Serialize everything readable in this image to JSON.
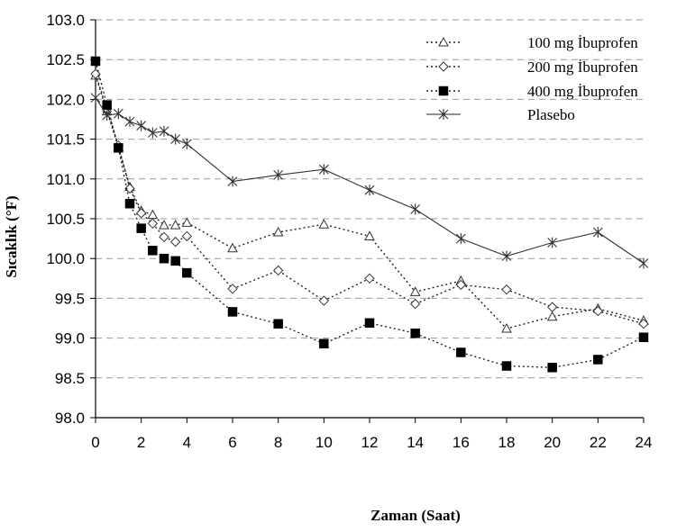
{
  "chart_data": {
    "type": "line",
    "title": "",
    "xlabel": "Zaman (Saat)",
    "ylabel": "Sıcaklık (°F)",
    "xlim": [
      0,
      24
    ],
    "ylim": [
      98.0,
      103.0
    ],
    "x_ticks": [
      0,
      2,
      4,
      6,
      8,
      10,
      12,
      14,
      16,
      18,
      20,
      22,
      24
    ],
    "y_ticks": [
      "98.0",
      "98.5",
      "99.0",
      "99.5",
      "100.0",
      "100.5",
      "101.0",
      "101.5",
      "102.0",
      "102.5",
      "103.0"
    ],
    "grid": "horizontal dashed",
    "legend_position": "top-right",
    "series": [
      {
        "name": "100 mg İbuprofen",
        "marker": "triangle-open",
        "line": "dotted",
        "x": [
          0,
          0.5,
          1,
          1.5,
          2,
          2.5,
          3,
          3.5,
          4,
          6,
          8,
          10,
          12,
          14,
          16,
          18,
          20,
          22,
          24
        ],
        "y": [
          102.3,
          101.85,
          101.4,
          100.9,
          100.6,
          100.55,
          100.42,
          100.42,
          100.45,
          100.13,
          100.33,
          100.43,
          100.28,
          99.58,
          99.72,
          99.12,
          99.27,
          99.37,
          99.22
        ]
      },
      {
        "name": "200 mg İbuprofen",
        "marker": "diamond-open",
        "line": "dotted",
        "x": [
          0,
          0.5,
          1,
          1.5,
          2,
          2.5,
          3,
          3.5,
          4,
          6,
          8,
          10,
          12,
          14,
          16,
          18,
          20,
          22,
          24
        ],
        "y": [
          102.32,
          101.88,
          101.42,
          100.88,
          100.57,
          100.44,
          100.27,
          100.21,
          100.28,
          99.62,
          99.85,
          99.47,
          99.75,
          99.43,
          99.67,
          99.61,
          99.39,
          99.34,
          99.18
        ]
      },
      {
        "name": "400 mg İbuprofen",
        "marker": "square-filled",
        "line": "dotted",
        "x": [
          0,
          0.5,
          1,
          1.5,
          2,
          2.5,
          3,
          3.5,
          4,
          6,
          8,
          10,
          12,
          14,
          16,
          18,
          20,
          22,
          24
        ],
        "y": [
          102.48,
          101.93,
          101.39,
          100.69,
          100.38,
          100.1,
          100.0,
          99.97,
          99.82,
          99.33,
          99.18,
          98.93,
          99.19,
          99.06,
          98.82,
          98.65,
          98.63,
          98.73,
          99.01
        ]
      },
      {
        "name": "Plasebo",
        "marker": "asterisk",
        "line": "solid",
        "x": [
          0,
          0.5,
          1,
          1.5,
          2,
          2.5,
          3,
          3.5,
          4,
          6,
          8,
          10,
          12,
          14,
          16,
          18,
          20,
          22,
          24
        ],
        "y": [
          102.02,
          101.8,
          101.82,
          101.72,
          101.67,
          101.58,
          101.6,
          101.5,
          101.44,
          100.97,
          101.05,
          101.12,
          100.86,
          100.62,
          100.25,
          100.03,
          100.2,
          100.33,
          99.94
        ]
      }
    ]
  }
}
